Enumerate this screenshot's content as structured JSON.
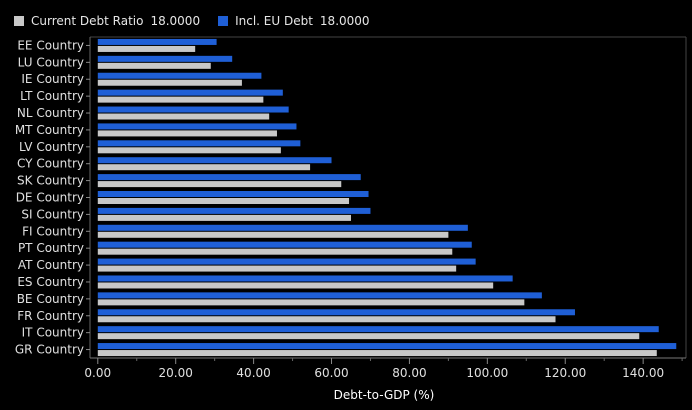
{
  "legend": {
    "items": [
      {
        "label": "Current Debt Ratio",
        "value": "18.0000",
        "color": "#c8c8c8"
      },
      {
        "label": "Incl. EU Debt",
        "value": "18.0000",
        "color": "#1f5fd6"
      }
    ]
  },
  "chart_data": {
    "type": "bar",
    "orientation": "horizontal",
    "categories": [
      "EE Country",
      "LU Country",
      "IE Country",
      "LT Country",
      "NL Country",
      "MT Country",
      "LV Country",
      "CY Country",
      "SK Country",
      "DE Country",
      "SI Country",
      "FI Country",
      "PT Country",
      "AT Country",
      "ES Country",
      "BE Country",
      "FR Country",
      "IT Country",
      "GR Country"
    ],
    "series": [
      {
        "name": "Current Debt Ratio",
        "color": "#c8c8c8",
        "values": [
          25.0,
          29.0,
          37.0,
          42.5,
          44.0,
          46.0,
          47.0,
          54.5,
          62.5,
          64.5,
          65.0,
          90.0,
          91.0,
          92.0,
          101.5,
          109.5,
          117.5,
          139.0,
          143.5
        ]
      },
      {
        "name": "Incl. EU Debt",
        "color": "#1f5fd6",
        "values": [
          30.5,
          34.5,
          42.0,
          47.5,
          49.0,
          51.0,
          52.0,
          60.0,
          67.5,
          69.5,
          70.0,
          95.0,
          96.0,
          97.0,
          106.5,
          114.0,
          122.5,
          144.0,
          148.5
        ]
      }
    ],
    "xlabel": "Debt-to-GDP (%)",
    "xlim": [
      -2,
      151
    ],
    "xticks": [
      0,
      20,
      40,
      60,
      80,
      100,
      120,
      140
    ],
    "xtick_labels": [
      "0.00",
      "20.00",
      "40.00",
      "60.00",
      "80.00",
      "100.00",
      "120.00",
      "140.00"
    ],
    "grid": false,
    "legend_position": "top-left"
  }
}
